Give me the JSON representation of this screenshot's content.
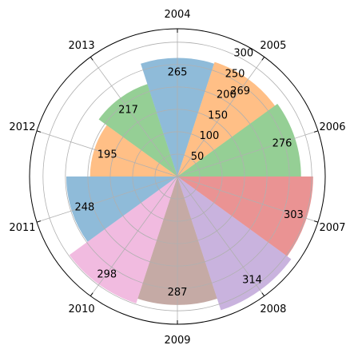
{
  "chart_data": {
    "type": "polar-bar",
    "title": "",
    "categories": [
      "2004",
      "2005",
      "2006",
      "2007",
      "2008",
      "2009",
      "2010",
      "2011",
      "2012",
      "2013"
    ],
    "values": [
      265,
      269,
      276,
      303,
      314,
      287,
      298,
      248,
      195,
      217
    ],
    "colors": [
      "#1f77b4",
      "#ff7f0e",
      "#2ca02c",
      "#d62728",
      "#9467bd",
      "#8c564b",
      "#e377c2",
      "#1f77b4",
      "#ff7f0e",
      "#2ca02c"
    ],
    "bar_alpha": 0.5,
    "radial_ticks": [
      50,
      100,
      150,
      200,
      250,
      300
    ],
    "rlim": [
      0,
      330
    ],
    "grid": true,
    "theta_direction": "clockwise",
    "theta_zero": "top"
  }
}
